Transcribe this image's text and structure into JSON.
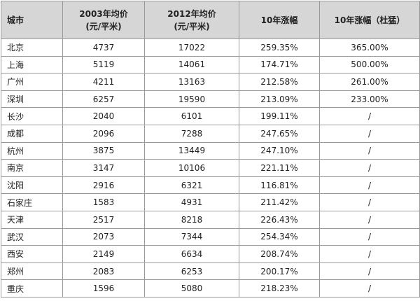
{
  "table": {
    "header": [
      [
        "城市"
      ],
      [
        "2003年均价",
        "(元/平米)"
      ],
      [
        "2012年均价",
        "(元/平米)"
      ],
      [
        "10年涨幅"
      ],
      [
        "10年涨幅（杜猛）"
      ]
    ],
    "rows": [
      [
        "北京",
        "4737",
        "17022",
        "259.35%",
        "365.00%"
      ],
      [
        "上海",
        "5119",
        "14061",
        "174.71%",
        "500.00%"
      ],
      [
        "广州",
        "4211",
        "13163",
        "212.58%",
        "261.00%"
      ],
      [
        "深圳",
        "6257",
        "19590",
        "213.09%",
        "233.00%"
      ],
      [
        "长沙",
        "2040",
        "6101",
        "199.11%",
        "/"
      ],
      [
        "成都",
        "2096",
        "7288",
        "247.65%",
        "/"
      ],
      [
        "杭州",
        "3875",
        "13449",
        "247.10%",
        "/"
      ],
      [
        "南京",
        "3147",
        "10106",
        "221.11%",
        "/"
      ],
      [
        "沈阳",
        "2916",
        "6321",
        "116.81%",
        "/"
      ],
      [
        "石家庄",
        "1583",
        "4931",
        "211.42%",
        "/"
      ],
      [
        "天津",
        "2517",
        "8218",
        "226.43%",
        "/"
      ],
      [
        "武汉",
        "2073",
        "7344",
        "254.34%",
        "/"
      ],
      [
        "西安",
        "2149",
        "6634",
        "208.74%",
        "/"
      ],
      [
        "郑州",
        "2083",
        "6253",
        "200.17%",
        "/"
      ],
      [
        "重庆",
        "1596",
        "5080",
        "218.23%",
        "/"
      ]
    ]
  }
}
